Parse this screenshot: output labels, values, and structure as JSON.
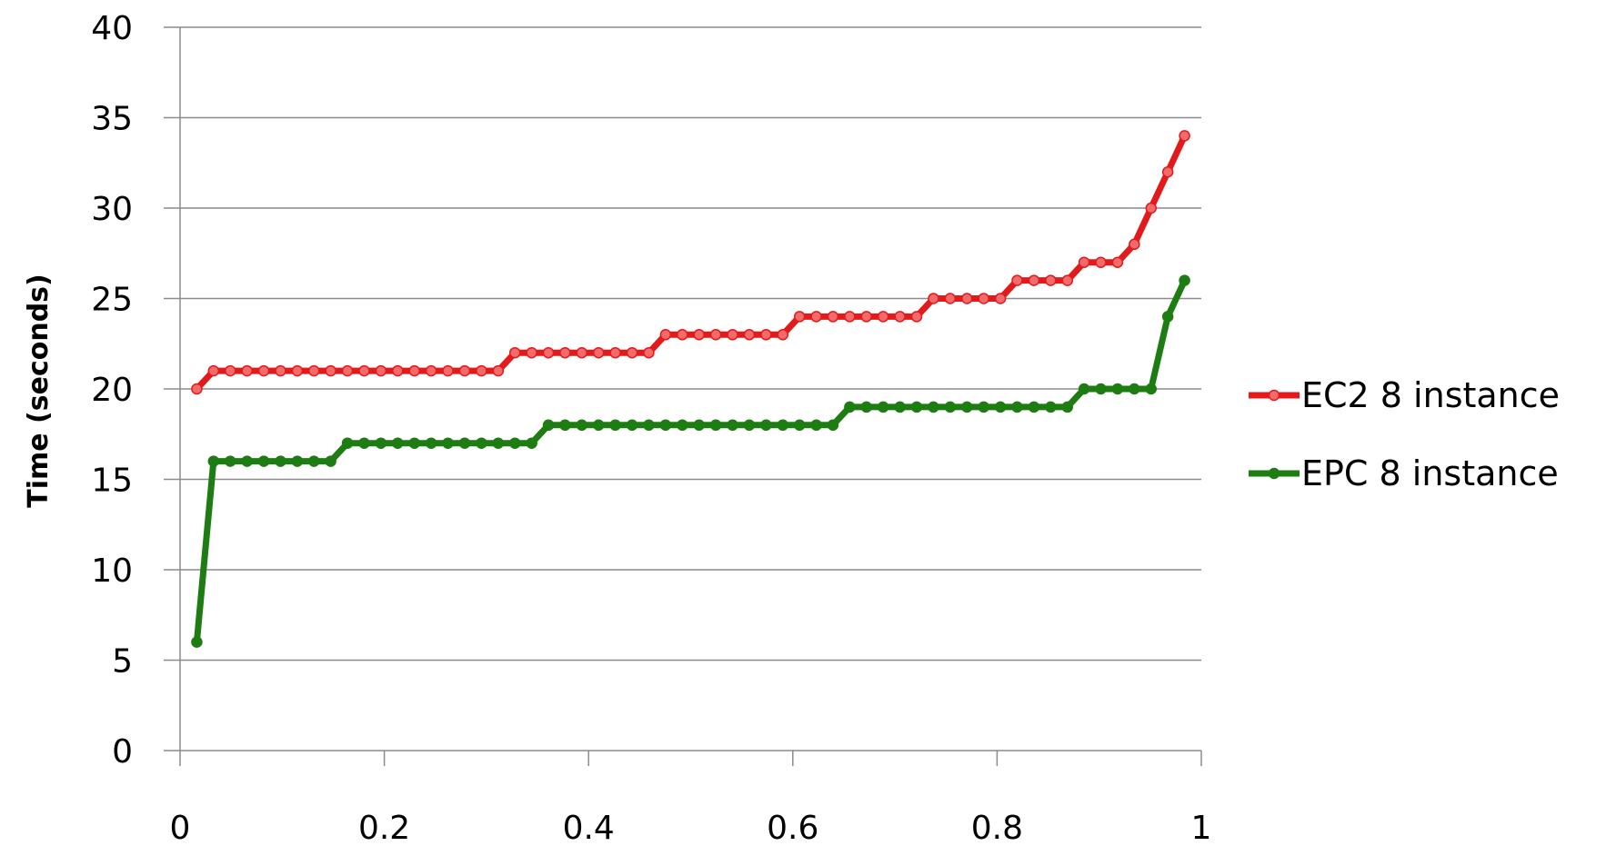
{
  "chart_data": {
    "type": "line",
    "title": "",
    "xlabel": "",
    "ylabel": "Time (seconds)",
    "xlim": [
      0,
      1
    ],
    "ylim": [
      0,
      40
    ],
    "x_ticks": [
      0,
      0.2,
      0.4,
      0.6,
      0.8,
      1
    ],
    "x_tick_labels": [
      "0",
      "0.2",
      "0.4",
      "0.6",
      "0.8",
      "1"
    ],
    "y_ticks": [
      0,
      5,
      10,
      15,
      20,
      25,
      30,
      35,
      40
    ],
    "y_tick_labels": [
      "0",
      "5",
      "10",
      "15",
      "20",
      "25",
      "30",
      "35",
      "40"
    ],
    "grid": "horizontal",
    "legend_position": "right",
    "series": [
      {
        "name": "EC2 8 instance",
        "color": "#e31a1c",
        "marker_color": "#f26a6a",
        "points": [
          [
            0.0164,
            20
          ],
          [
            0.0328,
            21
          ],
          [
            0.0492,
            21
          ],
          [
            0.0656,
            21
          ],
          [
            0.082,
            21
          ],
          [
            0.0984,
            21
          ],
          [
            0.1148,
            21
          ],
          [
            0.1311,
            21
          ],
          [
            0.1475,
            21
          ],
          [
            0.1639,
            21
          ],
          [
            0.1803,
            21
          ],
          [
            0.1967,
            21
          ],
          [
            0.2131,
            21
          ],
          [
            0.2295,
            21
          ],
          [
            0.2459,
            21
          ],
          [
            0.2623,
            21
          ],
          [
            0.2787,
            21
          ],
          [
            0.2951,
            21
          ],
          [
            0.3115,
            21
          ],
          [
            0.3279,
            22
          ],
          [
            0.3443,
            22
          ],
          [
            0.3607,
            22
          ],
          [
            0.377,
            22
          ],
          [
            0.3934,
            22
          ],
          [
            0.4098,
            22
          ],
          [
            0.4262,
            22
          ],
          [
            0.4426,
            22
          ],
          [
            0.459,
            22
          ],
          [
            0.4754,
            23
          ],
          [
            0.4918,
            23
          ],
          [
            0.5082,
            23
          ],
          [
            0.5246,
            23
          ],
          [
            0.541,
            23
          ],
          [
            0.5574,
            23
          ],
          [
            0.5738,
            23
          ],
          [
            0.5902,
            23
          ],
          [
            0.6066,
            24
          ],
          [
            0.623,
            24
          ],
          [
            0.6393,
            24
          ],
          [
            0.6557,
            24
          ],
          [
            0.6721,
            24
          ],
          [
            0.6885,
            24
          ],
          [
            0.7049,
            24
          ],
          [
            0.7213,
            24
          ],
          [
            0.7377,
            25
          ],
          [
            0.7541,
            25
          ],
          [
            0.7705,
            25
          ],
          [
            0.7869,
            25
          ],
          [
            0.8033,
            25
          ],
          [
            0.8197,
            26
          ],
          [
            0.8361,
            26
          ],
          [
            0.8525,
            26
          ],
          [
            0.8689,
            26
          ],
          [
            0.8852,
            27
          ],
          [
            0.9016,
            27
          ],
          [
            0.918,
            27
          ],
          [
            0.9344,
            28
          ],
          [
            0.9508,
            30
          ],
          [
            0.9672,
            32
          ],
          [
            0.9836,
            34
          ]
        ]
      },
      {
        "name": "EPC 8 instance",
        "color": "#1e7d12",
        "marker_color": "#1e7d12",
        "points": [
          [
            0.0164,
            6
          ],
          [
            0.0328,
            16
          ],
          [
            0.0492,
            16
          ],
          [
            0.0656,
            16
          ],
          [
            0.082,
            16
          ],
          [
            0.0984,
            16
          ],
          [
            0.1148,
            16
          ],
          [
            0.1311,
            16
          ],
          [
            0.1475,
            16
          ],
          [
            0.1639,
            17
          ],
          [
            0.1803,
            17
          ],
          [
            0.1967,
            17
          ],
          [
            0.2131,
            17
          ],
          [
            0.2295,
            17
          ],
          [
            0.2459,
            17
          ],
          [
            0.2623,
            17
          ],
          [
            0.2787,
            17
          ],
          [
            0.2951,
            17
          ],
          [
            0.3115,
            17
          ],
          [
            0.3279,
            17
          ],
          [
            0.3443,
            17
          ],
          [
            0.3607,
            18
          ],
          [
            0.377,
            18
          ],
          [
            0.3934,
            18
          ],
          [
            0.4098,
            18
          ],
          [
            0.4262,
            18
          ],
          [
            0.4426,
            18
          ],
          [
            0.459,
            18
          ],
          [
            0.4754,
            18
          ],
          [
            0.4918,
            18
          ],
          [
            0.5082,
            18
          ],
          [
            0.5246,
            18
          ],
          [
            0.541,
            18
          ],
          [
            0.5574,
            18
          ],
          [
            0.5738,
            18
          ],
          [
            0.5902,
            18
          ],
          [
            0.6066,
            18
          ],
          [
            0.623,
            18
          ],
          [
            0.6393,
            18
          ],
          [
            0.6557,
            19
          ],
          [
            0.6721,
            19
          ],
          [
            0.6885,
            19
          ],
          [
            0.7049,
            19
          ],
          [
            0.7213,
            19
          ],
          [
            0.7377,
            19
          ],
          [
            0.7541,
            19
          ],
          [
            0.7705,
            19
          ],
          [
            0.7869,
            19
          ],
          [
            0.8033,
            19
          ],
          [
            0.8197,
            19
          ],
          [
            0.8361,
            19
          ],
          [
            0.8525,
            19
          ],
          [
            0.8689,
            19
          ],
          [
            0.8852,
            20
          ],
          [
            0.9016,
            20
          ],
          [
            0.918,
            20
          ],
          [
            0.9344,
            20
          ],
          [
            0.9508,
            20
          ],
          [
            0.9672,
            24
          ],
          [
            0.9836,
            26
          ]
        ]
      }
    ]
  }
}
